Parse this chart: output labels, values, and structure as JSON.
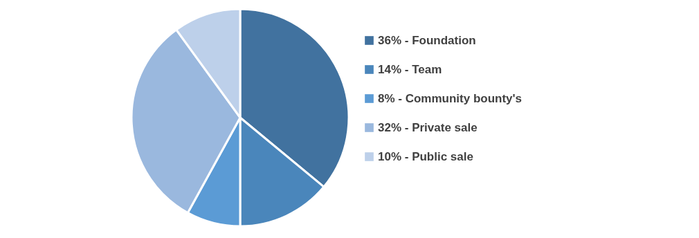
{
  "chart_data": {
    "type": "pie",
    "categories": [
      "36% - Foundation",
      "14% - Team",
      "8%  - Community bounty's",
      "32% - Private sale",
      "10% - Public sale"
    ],
    "values": [
      36,
      14,
      8,
      32,
      10
    ],
    "colors": [
      "#41729f",
      "#4a86bb",
      "#5b9bd5",
      "#9ab8de",
      "#bdd0ea"
    ],
    "legend": "right"
  }
}
